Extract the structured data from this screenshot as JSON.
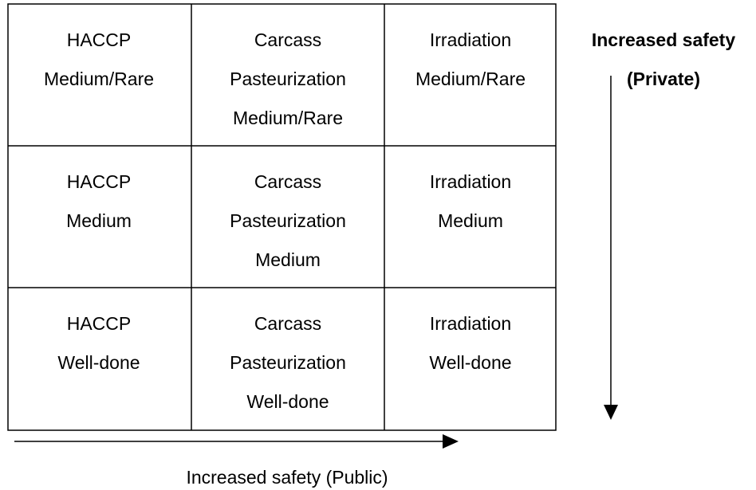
{
  "table": {
    "rows": [
      [
        [
          "HACCP",
          "Medium/Rare"
        ],
        [
          "Carcass",
          "Pasteurization",
          "Medium/Rare"
        ],
        [
          "Irradiation",
          "Medium/Rare"
        ]
      ],
      [
        [
          "HACCP",
          "Medium"
        ],
        [
          "Carcass",
          "Pasteurization",
          "Medium"
        ],
        [
          "Irradiation",
          "Medium"
        ]
      ],
      [
        [
          "HACCP",
          "Well-done"
        ],
        [
          "Carcass",
          "Pasteurization",
          "Well-done"
        ],
        [
          "Irradiation",
          "Well-done"
        ]
      ]
    ]
  },
  "private_label": [
    "Increased safety",
    "(Private)"
  ],
  "public_label": "Increased safety (Public)"
}
